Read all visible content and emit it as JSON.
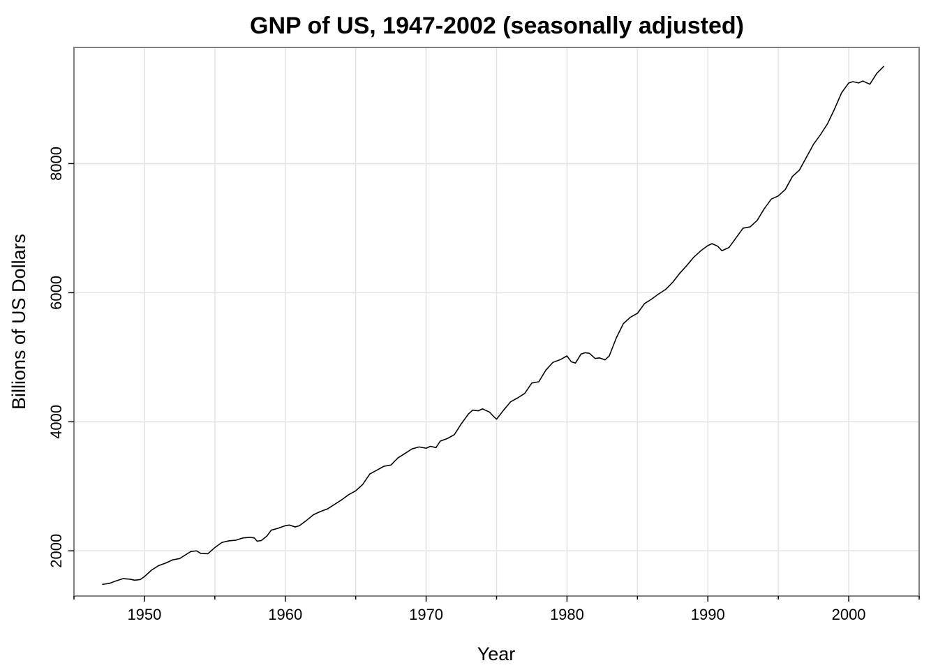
{
  "chart_data": {
    "type": "line",
    "title": "GNP of US, 1947-2002 (seasonally adjusted)",
    "xlabel": "Year",
    "ylabel": "Billions of US Dollars",
    "xlim": [
      1945,
      2005
    ],
    "ylim": [
      1300,
      9800
    ],
    "x_ticks": [
      1950,
      1960,
      1970,
      1980,
      1990,
      2000
    ],
    "x_minor_ticks": [
      1945,
      1955,
      1965,
      1975,
      1985,
      1995,
      2005
    ],
    "y_ticks": [
      2000,
      4000,
      6000,
      8000
    ],
    "grid": true,
    "legend": "none",
    "series": [
      {
        "color": "#000000",
        "x": [
          1947.0,
          1947.5,
          1948.0,
          1948.5,
          1949.0,
          1949.3,
          1949.7,
          1950.0,
          1950.5,
          1951.0,
          1951.5,
          1952.0,
          1952.5,
          1953.0,
          1953.3,
          1953.7,
          1954.0,
          1954.5,
          1955.0,
          1955.5,
          1956.0,
          1956.5,
          1957.0,
          1957.5,
          1957.8,
          1958.0,
          1958.3,
          1958.7,
          1959.0,
          1959.5,
          1960.0,
          1960.3,
          1960.7,
          1961.0,
          1961.5,
          1962.0,
          1962.5,
          1963.0,
          1963.5,
          1964.0,
          1964.5,
          1965.0,
          1965.5,
          1966.0,
          1966.5,
          1967.0,
          1967.5,
          1968.0,
          1968.5,
          1969.0,
          1969.5,
          1970.0,
          1970.3,
          1970.7,
          1971.0,
          1971.5,
          1972.0,
          1972.5,
          1973.0,
          1973.3,
          1973.7,
          1974.0,
          1974.5,
          1974.8,
          1975.0,
          1975.5,
          1976.0,
          1976.5,
          1977.0,
          1977.5,
          1978.0,
          1978.5,
          1979.0,
          1979.5,
          1980.0,
          1980.3,
          1980.6,
          1981.0,
          1981.3,
          1981.6,
          1982.0,
          1982.3,
          1982.7,
          1983.0,
          1983.5,
          1984.0,
          1984.5,
          1985.0,
          1985.5,
          1986.0,
          1986.5,
          1987.0,
          1987.5,
          1988.0,
          1988.5,
          1989.0,
          1989.5,
          1990.0,
          1990.3,
          1990.7,
          1991.0,
          1991.5,
          1992.0,
          1992.5,
          1993.0,
          1993.5,
          1994.0,
          1994.5,
          1995.0,
          1995.5,
          1996.0,
          1996.5,
          1997.0,
          1997.5,
          1998.0,
          1998.5,
          1999.0,
          1999.5,
          2000.0,
          2000.3,
          2000.7,
          2001.0,
          2001.5,
          2002.0,
          2002.5
        ],
        "values": [
          1480,
          1495,
          1535,
          1570,
          1560,
          1545,
          1555,
          1600,
          1700,
          1770,
          1810,
          1860,
          1880,
          1950,
          1990,
          2000,
          1960,
          1955,
          2050,
          2130,
          2155,
          2165,
          2200,
          2210,
          2200,
          2150,
          2160,
          2230,
          2320,
          2350,
          2390,
          2400,
          2370,
          2390,
          2470,
          2560,
          2610,
          2650,
          2720,
          2790,
          2870,
          2930,
          3030,
          3190,
          3250,
          3310,
          3330,
          3440,
          3510,
          3580,
          3610,
          3590,
          3620,
          3600,
          3700,
          3740,
          3800,
          3970,
          4120,
          4180,
          4170,
          4200,
          4150,
          4080,
          4040,
          4180,
          4310,
          4370,
          4440,
          4600,
          4620,
          4800,
          4920,
          4960,
          5020,
          4930,
          4910,
          5050,
          5070,
          5060,
          4980,
          4990,
          4960,
          5020,
          5300,
          5520,
          5620,
          5680,
          5830,
          5900,
          5980,
          6050,
          6160,
          6300,
          6420,
          6550,
          6650,
          6730,
          6760,
          6720,
          6650,
          6700,
          6850,
          7000,
          7020,
          7120,
          7300,
          7450,
          7500,
          7600,
          7800,
          7900,
          8100,
          8300,
          8450,
          8620,
          8850,
          9100,
          9250,
          9270,
          9250,
          9280,
          9230,
          9400,
          9510
        ]
      }
    ]
  }
}
